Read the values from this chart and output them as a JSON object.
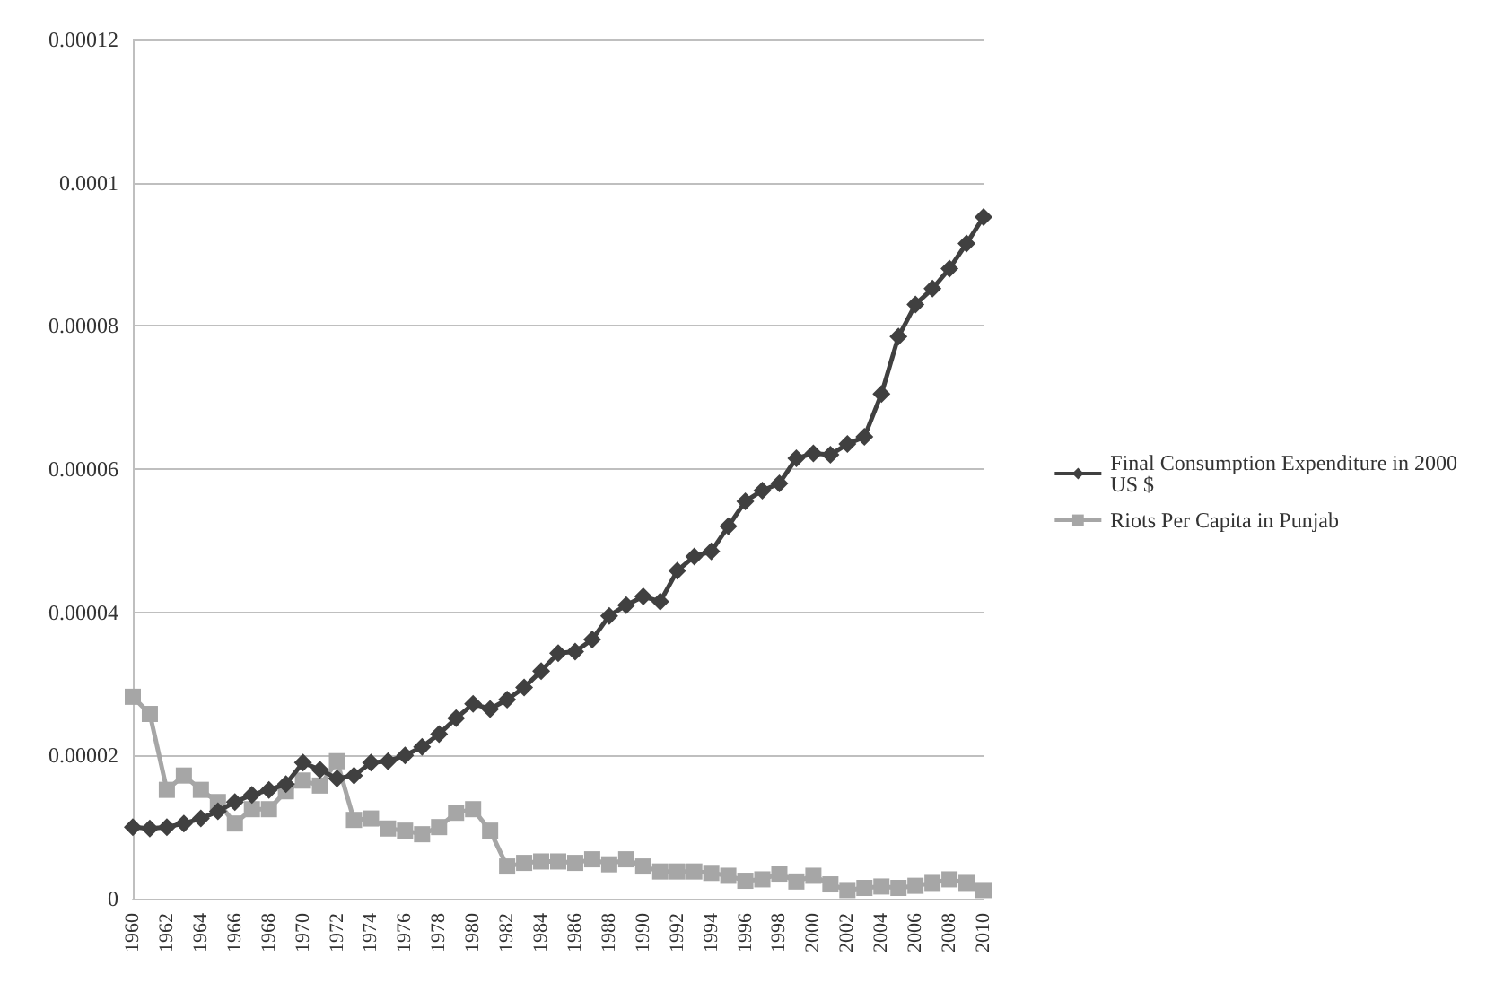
{
  "chart_data": {
    "type": "line",
    "categories": [
      "1960",
      null,
      "1962",
      null,
      "1964",
      null,
      "1966",
      null,
      "1968",
      null,
      "1970",
      null,
      "1972",
      null,
      "1974",
      null,
      "1976",
      null,
      "1978",
      null,
      "1980",
      null,
      "1982",
      null,
      "1984",
      null,
      "1986",
      null,
      "1988",
      null,
      "1990",
      null,
      "1992",
      null,
      "1994",
      null,
      "1996",
      null,
      "1998",
      null,
      "2000",
      null,
      "2002",
      null,
      "2004",
      null,
      "2006",
      null,
      "2008",
      null,
      "2010"
    ],
    "series": [
      {
        "name": "Final Consumption Expenditure in 2000 US $",
        "color": "#404040",
        "marker": "diamond",
        "values": [
          1e-05,
          9.8e-06,
          1e-05,
          1.05e-05,
          1.12e-05,
          1.22e-05,
          1.35e-05,
          1.45e-05,
          1.52e-05,
          1.6e-05,
          1.9e-05,
          1.8e-05,
          1.68e-05,
          1.72e-05,
          1.9e-05,
          1.92e-05,
          2e-05,
          2.12e-05,
          2.3e-05,
          2.52e-05,
          2.72e-05,
          2.65e-05,
          2.78e-05,
          2.95e-05,
          3.18e-05,
          3.43e-05,
          3.45e-05,
          3.62e-05,
          3.95e-05,
          4.1e-05,
          4.22e-05,
          4.15e-05,
          4.58e-05,
          4.78e-05,
          4.85e-05,
          5.2e-05,
          5.55e-05,
          5.7e-05,
          5.8e-05,
          6.15e-05,
          6.22e-05,
          6.2e-05,
          6.35e-05,
          6.45e-05,
          7.05e-05,
          7.85e-05,
          8.3e-05,
          8.52e-05,
          8.8e-05,
          9.15e-05,
          9.52e-05
        ]
      },
      {
        "name": "Riots Per Capita in Punjab",
        "color": "#a6a6a6",
        "marker": "square",
        "values": [
          2.82e-05,
          2.58e-05,
          1.52e-05,
          1.72e-05,
          1.52e-05,
          1.35e-05,
          1.05e-05,
          1.25e-05,
          1.25e-05,
          1.5e-05,
          1.65e-05,
          1.58e-05,
          1.92e-05,
          1.1e-05,
          1.12e-05,
          9.8e-06,
          9.5e-06,
          9e-06,
          1e-05,
          1.2e-05,
          1.25e-05,
          9.5e-06,
          4.5e-06,
          5e-06,
          5.2e-06,
          5.2e-06,
          5e-06,
          5.5e-06,
          4.8e-06,
          5.5e-06,
          4.5e-06,
          3.8e-06,
          3.8e-06,
          3.8e-06,
          3.6e-06,
          3.2e-06,
          2.5e-06,
          2.7e-06,
          3.5e-06,
          2.4e-06,
          3.2e-06,
          2e-06,
          1.2e-06,
          1.5e-06,
          1.7e-06,
          1.5e-06,
          1.8e-06,
          2.2e-06,
          2.7e-06,
          2.2e-06,
          1.2e-06
        ]
      }
    ],
    "ylim": [
      0,
      0.00012
    ],
    "yticks": [
      0,
      {
        "value": 2e-05,
        "label": "0.00002"
      },
      {
        "value": 4e-05,
        "label": "0.00004"
      },
      {
        "value": 6e-05,
        "label": "0.00006"
      },
      {
        "value": 8e-05,
        "label": "0.00008"
      },
      0.0001,
      0.00012
    ],
    "grid": "y",
    "legend": "right"
  }
}
